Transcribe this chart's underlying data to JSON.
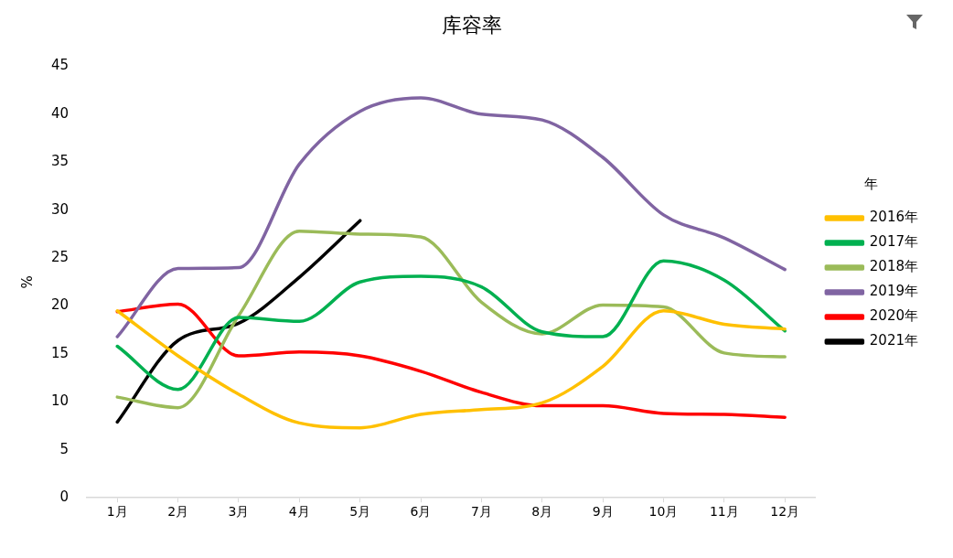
{
  "chart_data": {
    "type": "line",
    "title": "库容率",
    "ylabel": "%",
    "legend_title": "年",
    "categories": [
      "1月",
      "2月",
      "3月",
      "4月",
      "5月",
      "6月",
      "7月",
      "8月",
      "9月",
      "10月",
      "11月",
      "12月"
    ],
    "series": [
      {
        "name": "2016年",
        "color": "#ffc000",
        "values": [
          19.5,
          14.8,
          10.8,
          7.8,
          7.3,
          8.7,
          9.2,
          9.9,
          13.7,
          19.5,
          18.1,
          17.6
        ]
      },
      {
        "name": "2017年",
        "color": "#00b050",
        "values": [
          15.8,
          11.3,
          18.8,
          18.4,
          22.5,
          23.1,
          22.0,
          17.3,
          16.8,
          24.7,
          22.7,
          17.4
        ]
      },
      {
        "name": "2018年",
        "color": "#9bbb59",
        "values": [
          10.5,
          9.4,
          19.0,
          27.8,
          27.5,
          27.2,
          20.4,
          17.1,
          20.1,
          19.9,
          15.1,
          14.7
        ]
      },
      {
        "name": "2019年",
        "color": "#8064a2",
        "values": [
          16.8,
          23.9,
          24.0,
          34.8,
          40.3,
          41.7,
          40.0,
          39.4,
          35.5,
          29.5,
          27.1,
          23.8
        ]
      },
      {
        "name": "2020年",
        "color": "#ff0000",
        "values": [
          19.4,
          20.2,
          14.8,
          15.2,
          14.8,
          13.2,
          11.0,
          9.6,
          9.6,
          8.8,
          8.7,
          8.4
        ]
      },
      {
        "name": "2021年",
        "color": "#000000",
        "values": [
          7.9,
          16.4,
          18.2,
          23.0,
          28.9,
          null,
          null,
          null,
          null,
          null,
          null,
          null
        ]
      }
    ],
    "ylim": [
      0,
      45
    ],
    "yticks": [
      0,
      5,
      10,
      15,
      20,
      25,
      30,
      35,
      40,
      45
    ],
    "grid": false,
    "legend": "right",
    "marker": "none",
    "line_style": "solid"
  }
}
